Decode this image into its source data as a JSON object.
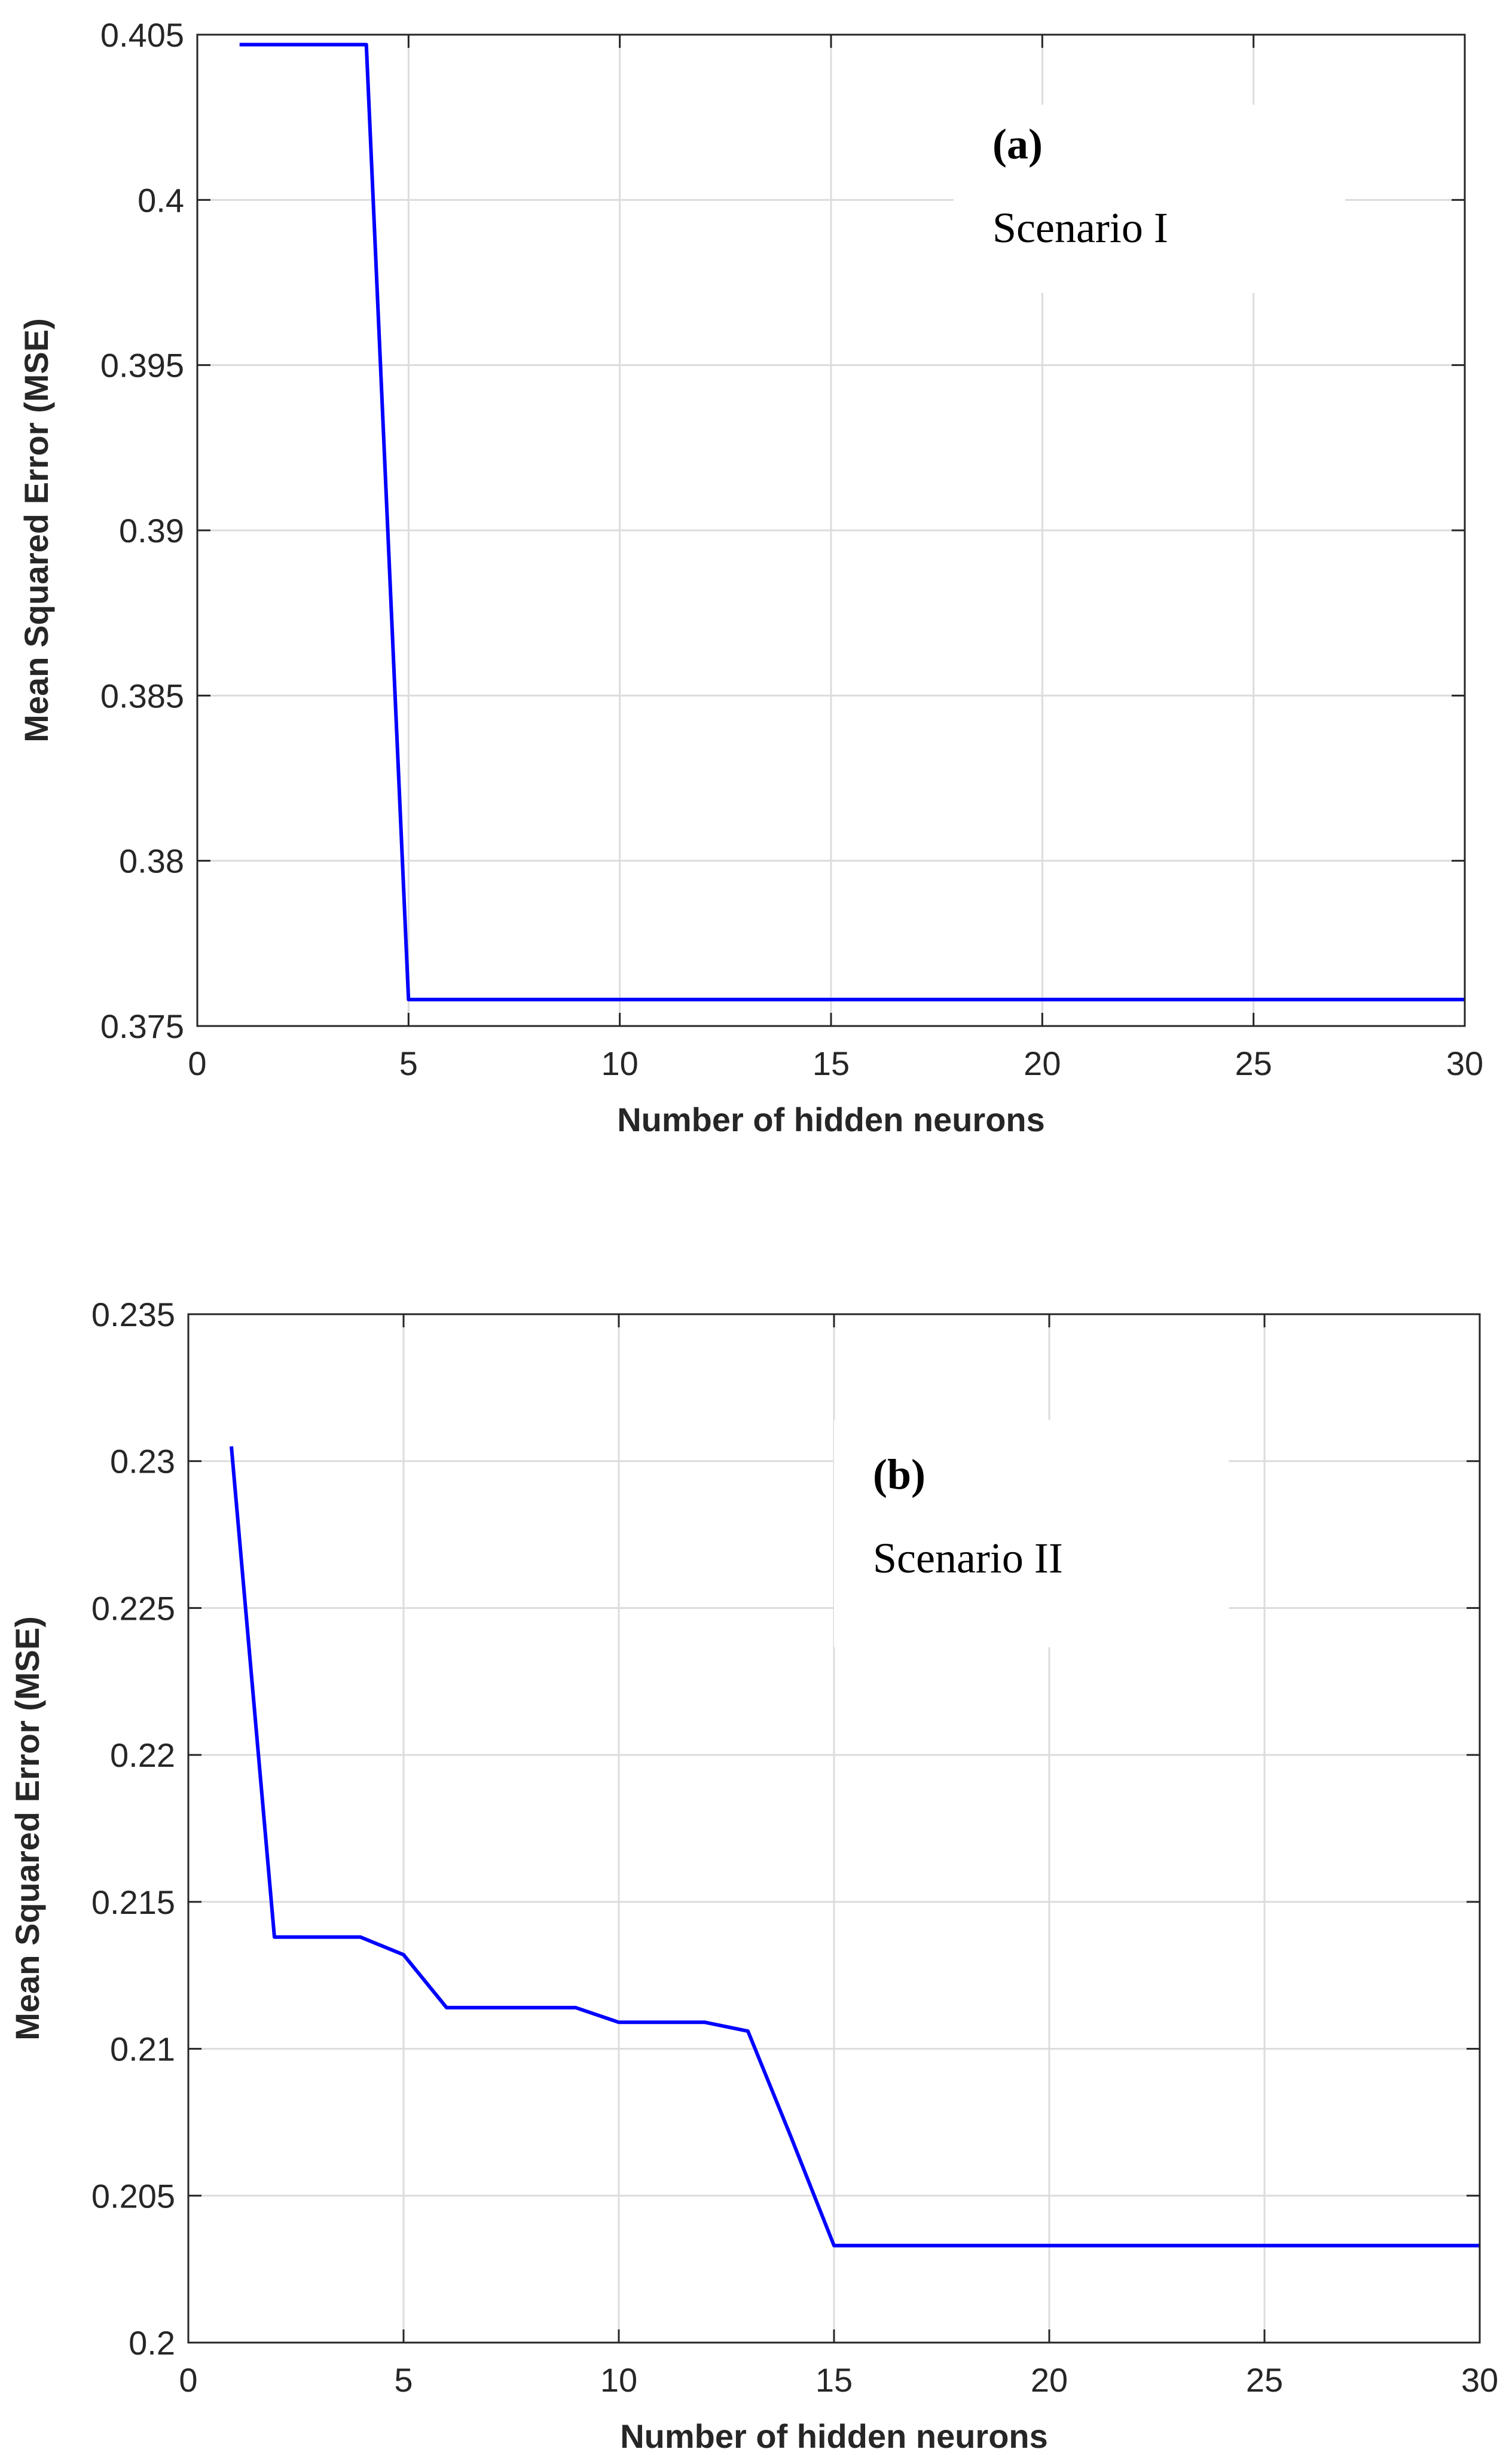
{
  "colors": {
    "line": "#0000ff",
    "grid": "#dcdcdc",
    "axis": "#262626",
    "annotation_bg": "#ffffff"
  },
  "chart_data": [
    {
      "type": "line",
      "title": "",
      "xlabel": "Number of hidden neurons",
      "ylabel": "Mean Squared Error (MSE)",
      "xlim": [
        0,
        30
      ],
      "ylim": [
        0.375,
        0.405
      ],
      "xticks": [
        0,
        5,
        10,
        15,
        20,
        25,
        30
      ],
      "xtick_labels": [
        "0",
        "5",
        "10",
        "15",
        "20",
        "25",
        "30"
      ],
      "yticks": [
        0.375,
        0.38,
        0.385,
        0.39,
        0.395,
        0.4,
        0.405
      ],
      "ytick_labels": [
        "0.375",
        "0.38",
        "0.385",
        "0.39",
        "0.395",
        "0.4",
        "0.405"
      ],
      "grid": true,
      "annotations": [
        "(a)",
        "Scenario I"
      ],
      "series": [
        {
          "x": [
            1,
            2,
            3,
            4,
            5,
            6,
            7,
            8,
            9,
            10,
            11,
            12,
            13,
            14,
            15,
            16,
            17,
            18,
            19,
            20,
            21,
            22,
            23,
            24,
            25,
            26,
            27,
            28,
            29,
            30
          ],
          "y": [
            0.4047,
            0.4047,
            0.4047,
            0.4047,
            0.3758,
            0.3758,
            0.3758,
            0.3758,
            0.3758,
            0.3758,
            0.3758,
            0.3758,
            0.3758,
            0.3758,
            0.3758,
            0.3758,
            0.3758,
            0.3758,
            0.3758,
            0.3758,
            0.3758,
            0.3758,
            0.3758,
            0.3758,
            0.3758,
            0.3758,
            0.3758,
            0.3758,
            0.3758,
            0.3758
          ]
        }
      ]
    },
    {
      "type": "line",
      "title": "",
      "xlabel": "Number of hidden neurons",
      "ylabel": "Mean Squared Error (MSE)",
      "xlim": [
        0,
        30
      ],
      "ylim": [
        0.2,
        0.235
      ],
      "xticks": [
        0,
        5,
        10,
        15,
        20,
        25,
        30
      ],
      "xtick_labels": [
        "0",
        "5",
        "10",
        "15",
        "20",
        "25",
        "30"
      ],
      "yticks": [
        0.2,
        0.205,
        0.21,
        0.215,
        0.22,
        0.225,
        0.23,
        0.235
      ],
      "ytick_labels": [
        "0.2",
        "0.205",
        "0.21",
        "0.215",
        "0.22",
        "0.225",
        "0.23",
        "0.235"
      ],
      "grid": true,
      "annotations": [
        "(b)",
        "Scenario II"
      ],
      "series": [
        {
          "x": [
            1,
            2,
            3,
            4,
            5,
            6,
            7,
            8,
            9,
            10,
            11,
            12,
            13,
            14,
            15,
            16,
            17,
            18,
            19,
            20,
            21,
            22,
            23,
            24,
            25,
            26,
            27,
            28,
            29,
            30
          ],
          "y": [
            0.2305,
            0.2138,
            0.2138,
            0.2138,
            0.2132,
            0.2114,
            0.2114,
            0.2114,
            0.2114,
            0.2109,
            0.2109,
            0.2109,
            0.2106,
            0.207,
            0.2033,
            0.2033,
            0.2033,
            0.2033,
            0.2033,
            0.2033,
            0.2033,
            0.2033,
            0.2033,
            0.2033,
            0.2033,
            0.2033,
            0.2033,
            0.2033,
            0.2033,
            0.2033
          ]
        }
      ]
    }
  ]
}
